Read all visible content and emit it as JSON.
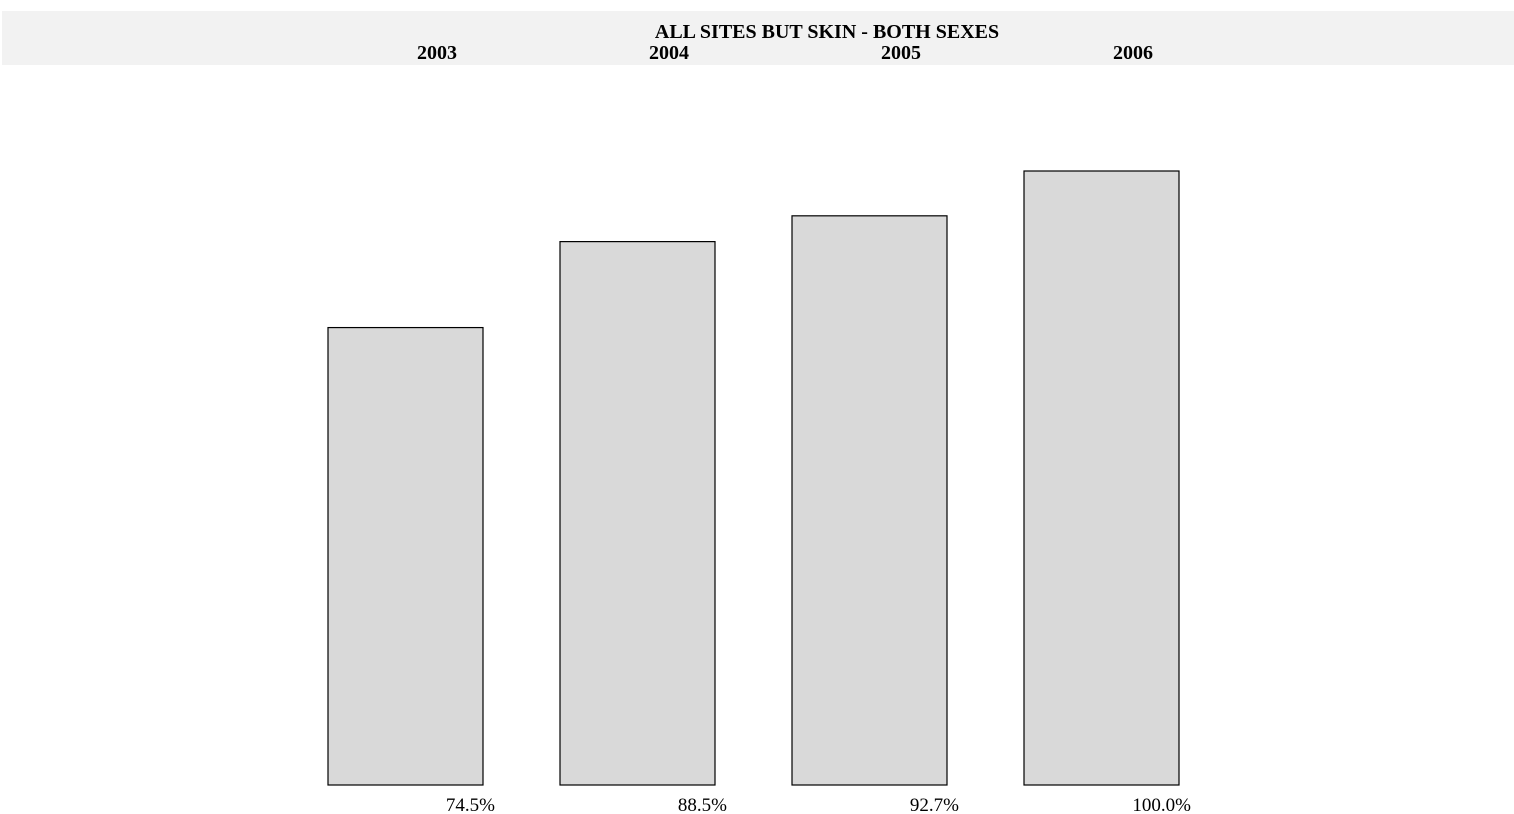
{
  "chart_data": {
    "type": "bar",
    "title": "ALL SITES BUT SKIN - BOTH SEXES",
    "categories": [
      "2003",
      "2004",
      "2005",
      "2006"
    ],
    "values": [
      74.5,
      88.5,
      92.7,
      100.0
    ],
    "value_labels": [
      "74.5%",
      "88.5%",
      "92.7%",
      "100.0%"
    ],
    "ylim": [
      0,
      100
    ],
    "grid": false,
    "legend": "none",
    "colors": {
      "bar_fill": "#d9d9d9",
      "bar_stroke": "#000000",
      "header_band": "#f2f2f2"
    }
  }
}
